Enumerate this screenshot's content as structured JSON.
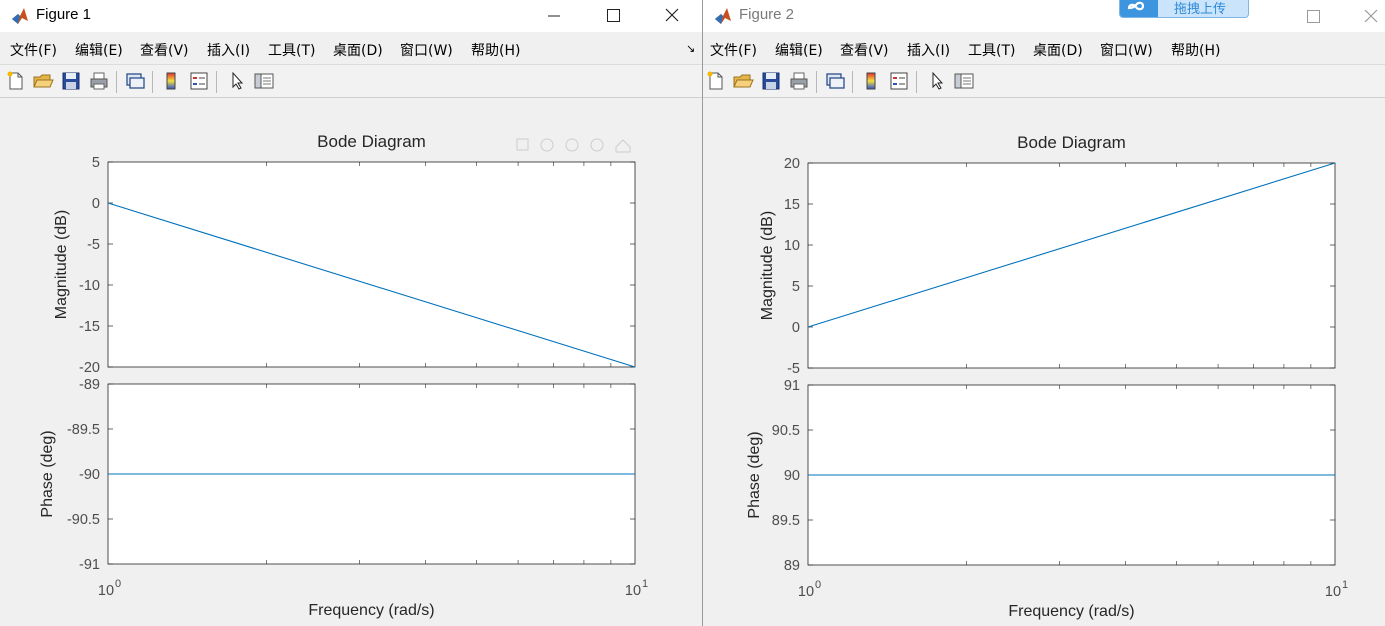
{
  "windows": [
    {
      "title": "Figure 1",
      "menu": [
        "文件(F)",
        "编辑(E)",
        "查看(V)",
        "插入(I)",
        "工具(T)",
        "桌面(D)",
        "窗口(W)",
        "帮助(H)"
      ],
      "dock_glyph": "↘",
      "toolbar_icons": [
        "new-figure-icon",
        "open-file-icon",
        "save-icon",
        "print-icon",
        "link-plot-icon",
        "colorbar-icon",
        "legend-icon",
        "pointer-icon",
        "property-editor-icon"
      ],
      "axes_toolbar_icons": [
        "export-icon",
        "pan-icon",
        "zoom-in-icon",
        "zoom-out-icon",
        "home-icon"
      ]
    },
    {
      "title": "Figure 2",
      "menu": [
        "文件(F)",
        "编辑(E)",
        "查看(V)",
        "插入(I)",
        "工具(T)",
        "桌面(D)",
        "窗口(W)",
        "帮助(H)"
      ],
      "toolbar_icons": [
        "new-figure-icon",
        "open-file-icon",
        "save-icon",
        "print-icon",
        "link-plot-icon",
        "colorbar-icon",
        "legend-icon",
        "pointer-icon",
        "property-editor-icon"
      ]
    }
  ],
  "overlay": {
    "upload_label": "拖拽上传"
  },
  "colors": {
    "line": "#0072bd",
    "axes_bg": "#ffffff",
    "figure_bg": "#f0f0f0"
  },
  "chart_data": [
    {
      "type": "line",
      "title": "Bode Diagram",
      "xlabel": "Frequency  (rad/s)",
      "xscale": "log",
      "xlim": [
        1,
        10
      ],
      "x_ticks": [
        "10",
        "10"
      ],
      "x_tick_exponents": [
        "0",
        "1"
      ],
      "panels": [
        {
          "ylabel": "Magnitude (dB)",
          "ylim": [
            -20,
            5
          ],
          "yticks": [
            "5",
            "0",
            "-5",
            "-10",
            "-15",
            "-20"
          ],
          "series": [
            {
              "x": [
                1,
                10
              ],
              "y": [
                0,
                -20
              ]
            }
          ]
        },
        {
          "ylabel": "Phase (deg)",
          "ylim": [
            -91,
            -89
          ],
          "yticks": [
            "-89",
            "-89.5",
            "-90",
            "-90.5",
            "-91"
          ],
          "series": [
            {
              "x": [
                1,
                10
              ],
              "y": [
                -90,
                -90
              ]
            }
          ]
        }
      ]
    },
    {
      "type": "line",
      "title": "Bode Diagram",
      "xlabel": "Frequency  (rad/s)",
      "xscale": "log",
      "xlim": [
        1,
        10
      ],
      "x_ticks": [
        "10",
        "10"
      ],
      "x_tick_exponents": [
        "0",
        "1"
      ],
      "panels": [
        {
          "ylabel": "Magnitude (dB)",
          "ylim": [
            -5,
            20
          ],
          "yticks": [
            "20",
            "15",
            "10",
            "5",
            "0",
            "-5"
          ],
          "series": [
            {
              "x": [
                1,
                10
              ],
              "y": [
                0,
                20
              ]
            }
          ]
        },
        {
          "ylabel": "Phase (deg)",
          "ylim": [
            89,
            91
          ],
          "yticks": [
            "91",
            "90.5",
            "90",
            "89.5",
            "89"
          ],
          "series": [
            {
              "x": [
                1,
                10
              ],
              "y": [
                90,
                90
              ]
            }
          ]
        }
      ]
    }
  ]
}
